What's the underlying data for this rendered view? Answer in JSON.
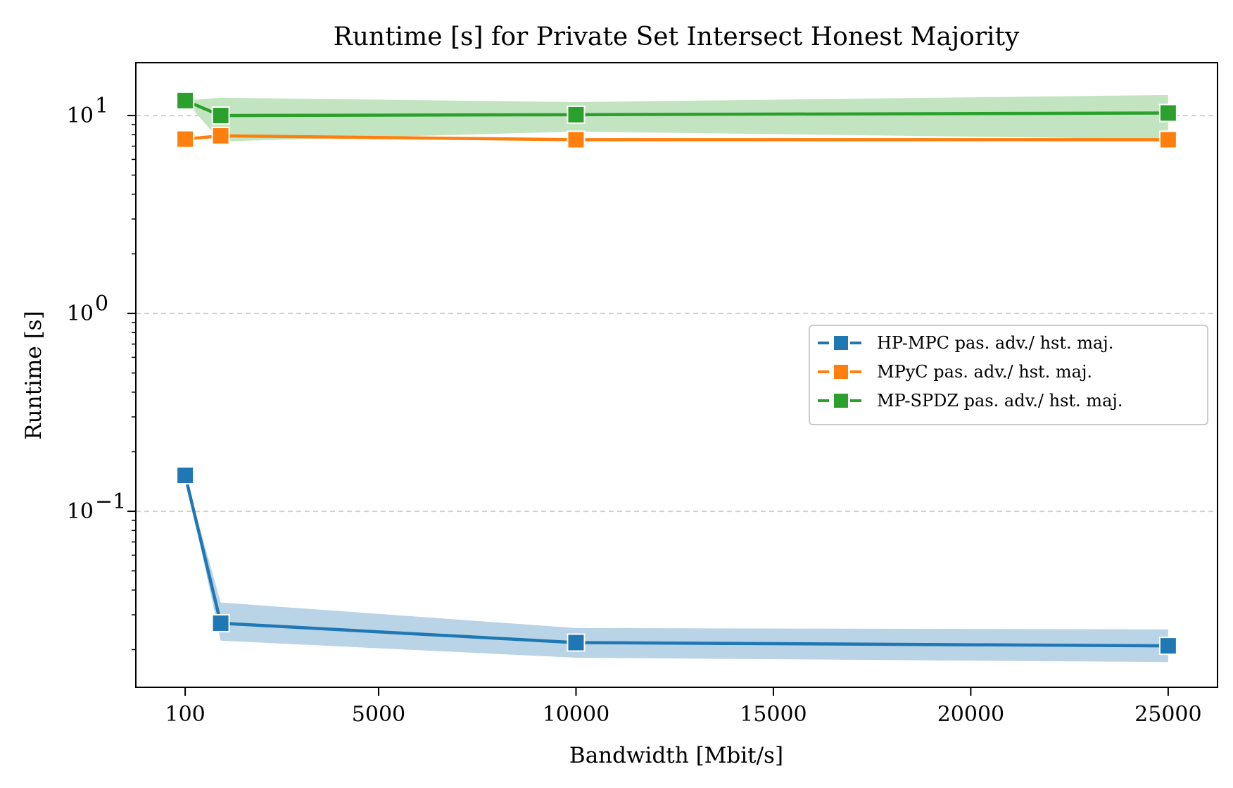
{
  "chart_data": {
    "type": "line",
    "title": "Runtime [s] for Private Set Intersect Honest Majority",
    "xlabel": "Bandwidth [Mbit/s]",
    "ylabel": "Runtime [s]",
    "yscale": "log",
    "xlim": [
      -1150,
      26250
    ],
    "ylim": [
      0.0129,
      18.5
    ],
    "grid": "horizontal-dashed",
    "legend_position": "center-right",
    "xticks": [
      {
        "value": 100,
        "label": "100"
      },
      {
        "value": 5000,
        "label": "5000"
      },
      {
        "value": 10000,
        "label": "10000"
      },
      {
        "value": 15000,
        "label": "15000"
      },
      {
        "value": 20000,
        "label": "20000"
      },
      {
        "value": 25000,
        "label": "25000"
      }
    ],
    "yticks": [
      {
        "value": 10,
        "base": "10",
        "exp": "1"
      },
      {
        "value": 1,
        "base": "10",
        "exp": "0"
      },
      {
        "value": 0.1,
        "base": "10",
        "exp": "−1"
      }
    ],
    "x": [
      100,
      1000,
      10000,
      25000
    ],
    "series": [
      {
        "name": "HP-MPC pas. adv./ hst. maj.",
        "color": "#1f77b4",
        "band_color": "#b9d3e7",
        "values": [
          0.152,
          0.0272,
          0.0217,
          0.0209
        ],
        "lower": [
          0.152,
          0.0222,
          0.0182,
          0.0173
        ],
        "upper": [
          0.152,
          0.0346,
          0.0257,
          0.0253
        ]
      },
      {
        "name": "MPyC pas. adv./ hst. maj.",
        "color": "#ff7f0e",
        "band_color": "#ffd9b5",
        "values": [
          7.6,
          7.9,
          7.55,
          7.55
        ],
        "lower": [
          7.6,
          7.8,
          7.5,
          7.5
        ],
        "upper": [
          7.6,
          8.0,
          7.6,
          7.6
        ]
      },
      {
        "name": "MP-SPDZ pas. adv./ hst. maj.",
        "color": "#2ca02c",
        "band_color": "#c3e4c1",
        "values": [
          11.9,
          10.0,
          10.1,
          10.3
        ],
        "lower": [
          11.9,
          7.4,
          8.3,
          7.6
        ],
        "upper": [
          11.9,
          12.3,
          11.7,
          12.7
        ]
      }
    ]
  }
}
